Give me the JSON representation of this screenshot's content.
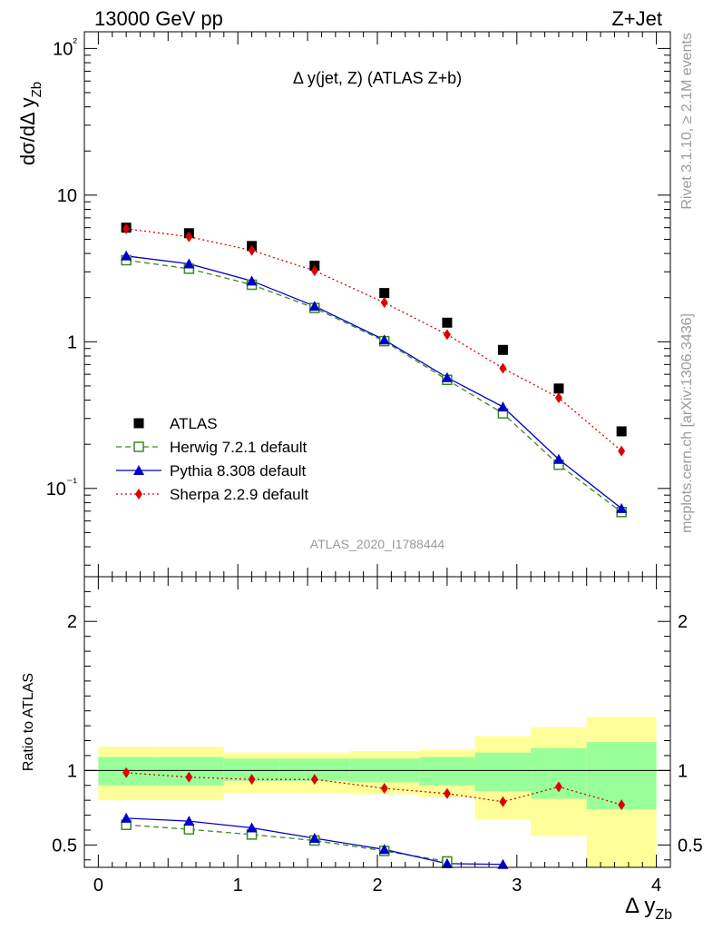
{
  "header": {
    "energy_label": "13000 GeV pp",
    "process_label": "Z+Jet"
  },
  "side_labels": {
    "rivet": "Rivet 3.1.10, ≥ 2.1M events",
    "source": "mcplots.cern.ch [arXiv:1306.3436]"
  },
  "chart_data": [
    {
      "type": "scatter",
      "panel": "main",
      "title": "Δ y(jet, Z) (ATLAS Z+b)",
      "watermark": "ATLAS_2020_I1788444",
      "ylabel": "dσ/dΔ y_Zb",
      "xlabel": "",
      "xlim": [
        -0.1,
        4.1
      ],
      "ylim": [
        0.025,
        130
      ],
      "yscale": "log",
      "y_tick_labels": [
        "10⁻¹",
        "1",
        "10",
        "10²"
      ],
      "x": [
        0.2,
        0.65,
        1.1,
        1.55,
        2.05,
        2.5,
        2.9,
        3.3,
        3.75
      ],
      "series": [
        {
          "name": "ATLAS",
          "style": "data",
          "color": "#000000",
          "values": [
            6.0,
            5.5,
            4.5,
            3.3,
            2.15,
            1.35,
            0.88,
            0.48,
            0.245
          ]
        },
        {
          "name": "Herwig 7.2.1 default",
          "style": "dashed",
          "marker": "open-square",
          "color": "#3a8a1e",
          "values": [
            3.6,
            3.15,
            2.45,
            1.7,
            1.01,
            0.55,
            0.325,
            0.145,
            0.069
          ]
        },
        {
          "name": "Pythia 8.308 default",
          "style": "solid",
          "marker": "triangle",
          "color": "#0000cc",
          "values": [
            3.85,
            3.4,
            2.6,
            1.75,
            1.03,
            0.57,
            0.36,
            0.158,
            0.073
          ]
        },
        {
          "name": "Sherpa 2.2.9 default",
          "style": "dotted",
          "marker": "diamond",
          "color": "#dd0000",
          "values": [
            5.9,
            5.2,
            4.2,
            3.05,
            1.85,
            1.12,
            0.66,
            0.415,
            0.18
          ]
        }
      ],
      "legend_position": "bottom-left"
    },
    {
      "type": "line",
      "panel": "ratio",
      "ylabel": "Ratio to ATLAS",
      "xlabel": "Δ y_Zb",
      "xlim": [
        -0.1,
        4.1
      ],
      "ylim": [
        0.35,
        2.3
      ],
      "x_tick_labels": [
        "0",
        "1",
        "2",
        "3",
        "4"
      ],
      "y_tick_labels": [
        "0.5",
        "1",
        "2"
      ],
      "bins": [
        [
          0.0,
          0.4
        ],
        [
          0.4,
          0.9
        ],
        [
          0.9,
          1.3
        ],
        [
          1.3,
          1.8
        ],
        [
          1.8,
          2.3
        ],
        [
          2.3,
          2.7
        ],
        [
          2.7,
          3.1
        ],
        [
          3.1,
          3.5
        ],
        [
          3.5,
          4.0
        ]
      ],
      "band_stat": [
        [
          0.9,
          1.09
        ],
        [
          0.9,
          1.09
        ],
        [
          0.93,
          1.08
        ],
        [
          0.93,
          1.08
        ],
        [
          0.92,
          1.08
        ],
        [
          0.9,
          1.09
        ],
        [
          0.86,
          1.12
        ],
        [
          0.81,
          1.15
        ],
        [
          0.74,
          1.19
        ]
      ],
      "band_total": [
        [
          0.8,
          1.16
        ],
        [
          0.8,
          1.16
        ],
        [
          0.85,
          1.12
        ],
        [
          0.85,
          1.12
        ],
        [
          0.84,
          1.13
        ],
        [
          0.82,
          1.14
        ],
        [
          0.67,
          1.23
        ],
        [
          0.56,
          1.29
        ],
        [
          0.3,
          1.36
        ]
      ],
      "band_colors": {
        "stat": "#99ff99",
        "total": "#ffff99"
      },
      "x": [
        0.2,
        0.65,
        1.1,
        1.55,
        2.05,
        2.5,
        2.9,
        3.3,
        3.75
      ],
      "series": [
        {
          "name": "Herwig 7.2.1 default",
          "color": "#3a8a1e",
          "values": [
            0.635,
            0.605,
            0.57,
            0.53,
            0.46,
            0.39,
            null,
            null,
            null
          ]
        },
        {
          "name": "Pythia 8.308 default",
          "color": "#0000cc",
          "values": [
            0.68,
            0.66,
            0.615,
            0.545,
            0.47,
            0.375,
            0.37,
            null,
            null
          ]
        },
        {
          "name": "Sherpa 2.2.9 default",
          "color": "#dd0000",
          "values": [
            0.985,
            0.955,
            0.94,
            0.94,
            0.88,
            0.845,
            0.79,
            0.89,
            0.77
          ]
        }
      ]
    }
  ]
}
